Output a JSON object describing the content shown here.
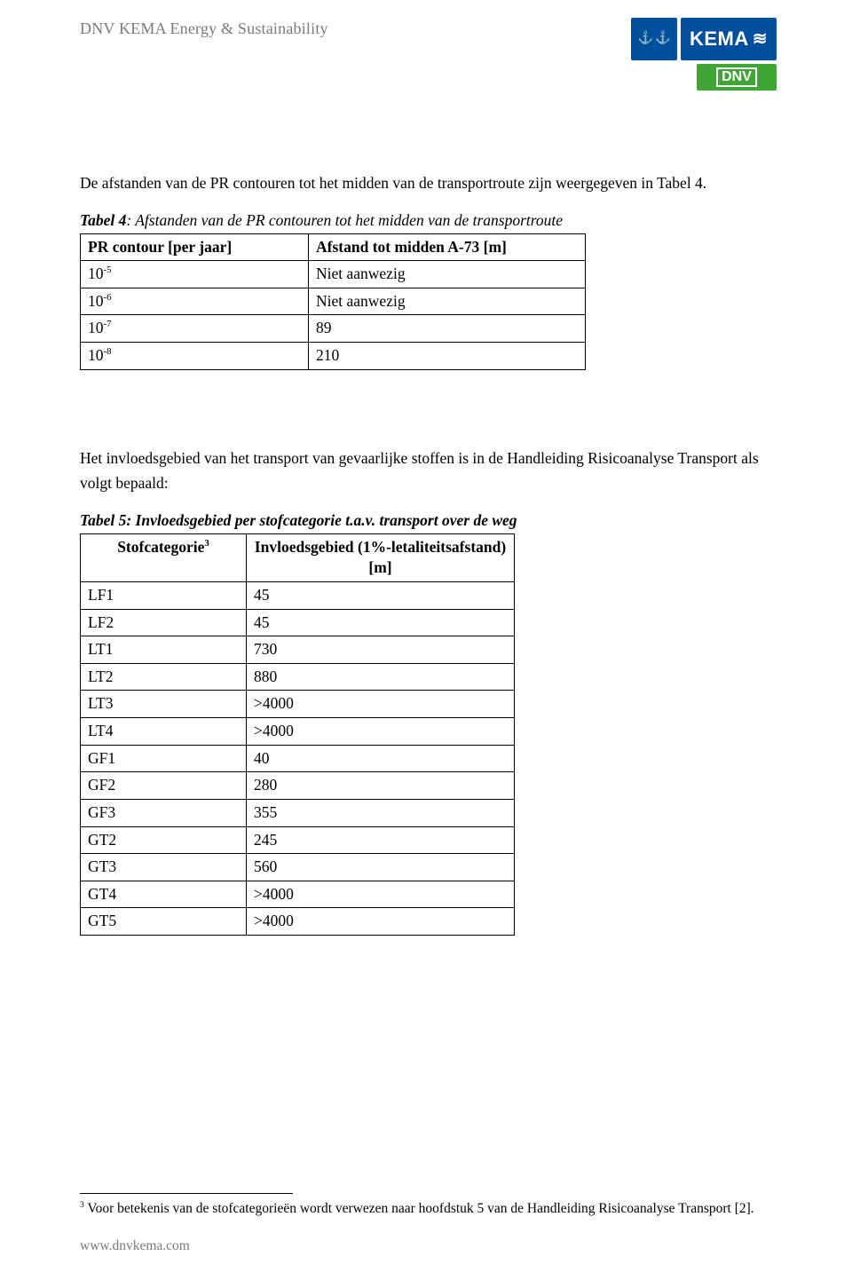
{
  "header": {
    "org_name": "DNV KEMA Energy & Sustainability",
    "kema_text": "KEMA",
    "dnv_text": "DNV"
  },
  "intro_paragraph": "De afstanden van de PR contouren tot het midden van de transportroute zijn weergegeven in Tabel 4.",
  "table4": {
    "caption_bold": "Tabel 4",
    "caption_rest": ": Afstanden van de PR contouren tot het midden van de transportroute",
    "col1_header": "PR contour [per jaar]",
    "col2_header": "Afstand tot midden A-73 [m]",
    "rows": [
      {
        "base": "10",
        "exp": "-5",
        "val": "Niet aanwezig"
      },
      {
        "base": "10",
        "exp": "-6",
        "val": "Niet aanwezig"
      },
      {
        "base": "10",
        "exp": "-7",
        "val": "89"
      },
      {
        "base": "10",
        "exp": "-8",
        "val": "210"
      }
    ]
  },
  "mid_paragraph": "Het invloedsgebied van het transport van gevaarlijke stoffen is in de Handleiding Risicoanalyse Transport als volgt bepaald:",
  "table5": {
    "caption": "Tabel 5: Invloedsgebied per stofcategorie t.a.v. transport over de weg",
    "col1_header_base": "Stofcategorie",
    "col1_header_sup": "3",
    "col2_header_line1": "Invloedsgebied (1%-letaliteitsafstand)",
    "col2_header_line2": "[m]",
    "rows": [
      {
        "cat": "LF1",
        "val": "45"
      },
      {
        "cat": "LF2",
        "val": "45"
      },
      {
        "cat": "LT1",
        "val": "730"
      },
      {
        "cat": "LT2",
        "val": "880"
      },
      {
        "cat": "LT3",
        "val": ">4000"
      },
      {
        "cat": "LT4",
        "val": ">4000"
      },
      {
        "cat": "GF1",
        "val": "40"
      },
      {
        "cat": "GF2",
        "val": "280"
      },
      {
        "cat": "GF3",
        "val": "355"
      },
      {
        "cat": "GT2",
        "val": "245"
      },
      {
        "cat": "GT3",
        "val": "560"
      },
      {
        "cat": "GT4",
        "val": ">4000"
      },
      {
        "cat": "GT5",
        "val": ">4000"
      }
    ]
  },
  "footnote": {
    "marker": "3",
    "text": " Voor betekenis van de stofcategorieën wordt verwezen naar hoofdstuk 5 van de Handleiding Risicoanalyse Transport [2]."
  },
  "footer": "www.dnvkema.com"
}
